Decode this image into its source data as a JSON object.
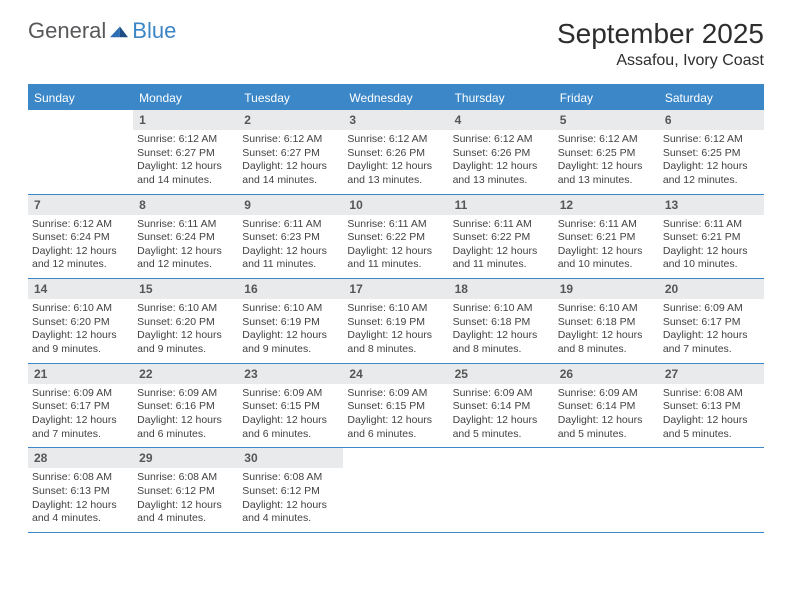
{
  "logo": {
    "part1": "General",
    "part2": "Blue"
  },
  "title": "September 2025",
  "location": "Assafou, Ivory Coast",
  "colors": {
    "header_bg": "#3b87c8",
    "header_text": "#ffffff",
    "daynum_bg": "#e9eaeb",
    "daynum_text": "#565656",
    "body_text": "#424242",
    "rule": "#3b87c8",
    "logo_gray": "#57585a",
    "logo_blue": "#3d86c6"
  },
  "weekdays": [
    "Sunday",
    "Monday",
    "Tuesday",
    "Wednesday",
    "Thursday",
    "Friday",
    "Saturday"
  ],
  "weeks": [
    [
      null,
      {
        "n": "1",
        "sunrise": "Sunrise: 6:12 AM",
        "sunset": "Sunset: 6:27 PM",
        "day1": "Daylight: 12 hours",
        "day2": "and 14 minutes."
      },
      {
        "n": "2",
        "sunrise": "Sunrise: 6:12 AM",
        "sunset": "Sunset: 6:27 PM",
        "day1": "Daylight: 12 hours",
        "day2": "and 14 minutes."
      },
      {
        "n": "3",
        "sunrise": "Sunrise: 6:12 AM",
        "sunset": "Sunset: 6:26 PM",
        "day1": "Daylight: 12 hours",
        "day2": "and 13 minutes."
      },
      {
        "n": "4",
        "sunrise": "Sunrise: 6:12 AM",
        "sunset": "Sunset: 6:26 PM",
        "day1": "Daylight: 12 hours",
        "day2": "and 13 minutes."
      },
      {
        "n": "5",
        "sunrise": "Sunrise: 6:12 AM",
        "sunset": "Sunset: 6:25 PM",
        "day1": "Daylight: 12 hours",
        "day2": "and 13 minutes."
      },
      {
        "n": "6",
        "sunrise": "Sunrise: 6:12 AM",
        "sunset": "Sunset: 6:25 PM",
        "day1": "Daylight: 12 hours",
        "day2": "and 12 minutes."
      }
    ],
    [
      {
        "n": "7",
        "sunrise": "Sunrise: 6:12 AM",
        "sunset": "Sunset: 6:24 PM",
        "day1": "Daylight: 12 hours",
        "day2": "and 12 minutes."
      },
      {
        "n": "8",
        "sunrise": "Sunrise: 6:11 AM",
        "sunset": "Sunset: 6:24 PM",
        "day1": "Daylight: 12 hours",
        "day2": "and 12 minutes."
      },
      {
        "n": "9",
        "sunrise": "Sunrise: 6:11 AM",
        "sunset": "Sunset: 6:23 PM",
        "day1": "Daylight: 12 hours",
        "day2": "and 11 minutes."
      },
      {
        "n": "10",
        "sunrise": "Sunrise: 6:11 AM",
        "sunset": "Sunset: 6:22 PM",
        "day1": "Daylight: 12 hours",
        "day2": "and 11 minutes."
      },
      {
        "n": "11",
        "sunrise": "Sunrise: 6:11 AM",
        "sunset": "Sunset: 6:22 PM",
        "day1": "Daylight: 12 hours",
        "day2": "and 11 minutes."
      },
      {
        "n": "12",
        "sunrise": "Sunrise: 6:11 AM",
        "sunset": "Sunset: 6:21 PM",
        "day1": "Daylight: 12 hours",
        "day2": "and 10 minutes."
      },
      {
        "n": "13",
        "sunrise": "Sunrise: 6:11 AM",
        "sunset": "Sunset: 6:21 PM",
        "day1": "Daylight: 12 hours",
        "day2": "and 10 minutes."
      }
    ],
    [
      {
        "n": "14",
        "sunrise": "Sunrise: 6:10 AM",
        "sunset": "Sunset: 6:20 PM",
        "day1": "Daylight: 12 hours",
        "day2": "and 9 minutes."
      },
      {
        "n": "15",
        "sunrise": "Sunrise: 6:10 AM",
        "sunset": "Sunset: 6:20 PM",
        "day1": "Daylight: 12 hours",
        "day2": "and 9 minutes."
      },
      {
        "n": "16",
        "sunrise": "Sunrise: 6:10 AM",
        "sunset": "Sunset: 6:19 PM",
        "day1": "Daylight: 12 hours",
        "day2": "and 9 minutes."
      },
      {
        "n": "17",
        "sunrise": "Sunrise: 6:10 AM",
        "sunset": "Sunset: 6:19 PM",
        "day1": "Daylight: 12 hours",
        "day2": "and 8 minutes."
      },
      {
        "n": "18",
        "sunrise": "Sunrise: 6:10 AM",
        "sunset": "Sunset: 6:18 PM",
        "day1": "Daylight: 12 hours",
        "day2": "and 8 minutes."
      },
      {
        "n": "19",
        "sunrise": "Sunrise: 6:10 AM",
        "sunset": "Sunset: 6:18 PM",
        "day1": "Daylight: 12 hours",
        "day2": "and 8 minutes."
      },
      {
        "n": "20",
        "sunrise": "Sunrise: 6:09 AM",
        "sunset": "Sunset: 6:17 PM",
        "day1": "Daylight: 12 hours",
        "day2": "and 7 minutes."
      }
    ],
    [
      {
        "n": "21",
        "sunrise": "Sunrise: 6:09 AM",
        "sunset": "Sunset: 6:17 PM",
        "day1": "Daylight: 12 hours",
        "day2": "and 7 minutes."
      },
      {
        "n": "22",
        "sunrise": "Sunrise: 6:09 AM",
        "sunset": "Sunset: 6:16 PM",
        "day1": "Daylight: 12 hours",
        "day2": "and 6 minutes."
      },
      {
        "n": "23",
        "sunrise": "Sunrise: 6:09 AM",
        "sunset": "Sunset: 6:15 PM",
        "day1": "Daylight: 12 hours",
        "day2": "and 6 minutes."
      },
      {
        "n": "24",
        "sunrise": "Sunrise: 6:09 AM",
        "sunset": "Sunset: 6:15 PM",
        "day1": "Daylight: 12 hours",
        "day2": "and 6 minutes."
      },
      {
        "n": "25",
        "sunrise": "Sunrise: 6:09 AM",
        "sunset": "Sunset: 6:14 PM",
        "day1": "Daylight: 12 hours",
        "day2": "and 5 minutes."
      },
      {
        "n": "26",
        "sunrise": "Sunrise: 6:09 AM",
        "sunset": "Sunset: 6:14 PM",
        "day1": "Daylight: 12 hours",
        "day2": "and 5 minutes."
      },
      {
        "n": "27",
        "sunrise": "Sunrise: 6:08 AM",
        "sunset": "Sunset: 6:13 PM",
        "day1": "Daylight: 12 hours",
        "day2": "and 5 minutes."
      }
    ],
    [
      {
        "n": "28",
        "sunrise": "Sunrise: 6:08 AM",
        "sunset": "Sunset: 6:13 PM",
        "day1": "Daylight: 12 hours",
        "day2": "and 4 minutes."
      },
      {
        "n": "29",
        "sunrise": "Sunrise: 6:08 AM",
        "sunset": "Sunset: 6:12 PM",
        "day1": "Daylight: 12 hours",
        "day2": "and 4 minutes."
      },
      {
        "n": "30",
        "sunrise": "Sunrise: 6:08 AM",
        "sunset": "Sunset: 6:12 PM",
        "day1": "Daylight: 12 hours",
        "day2": "and 4 minutes."
      },
      null,
      null,
      null,
      null
    ]
  ]
}
